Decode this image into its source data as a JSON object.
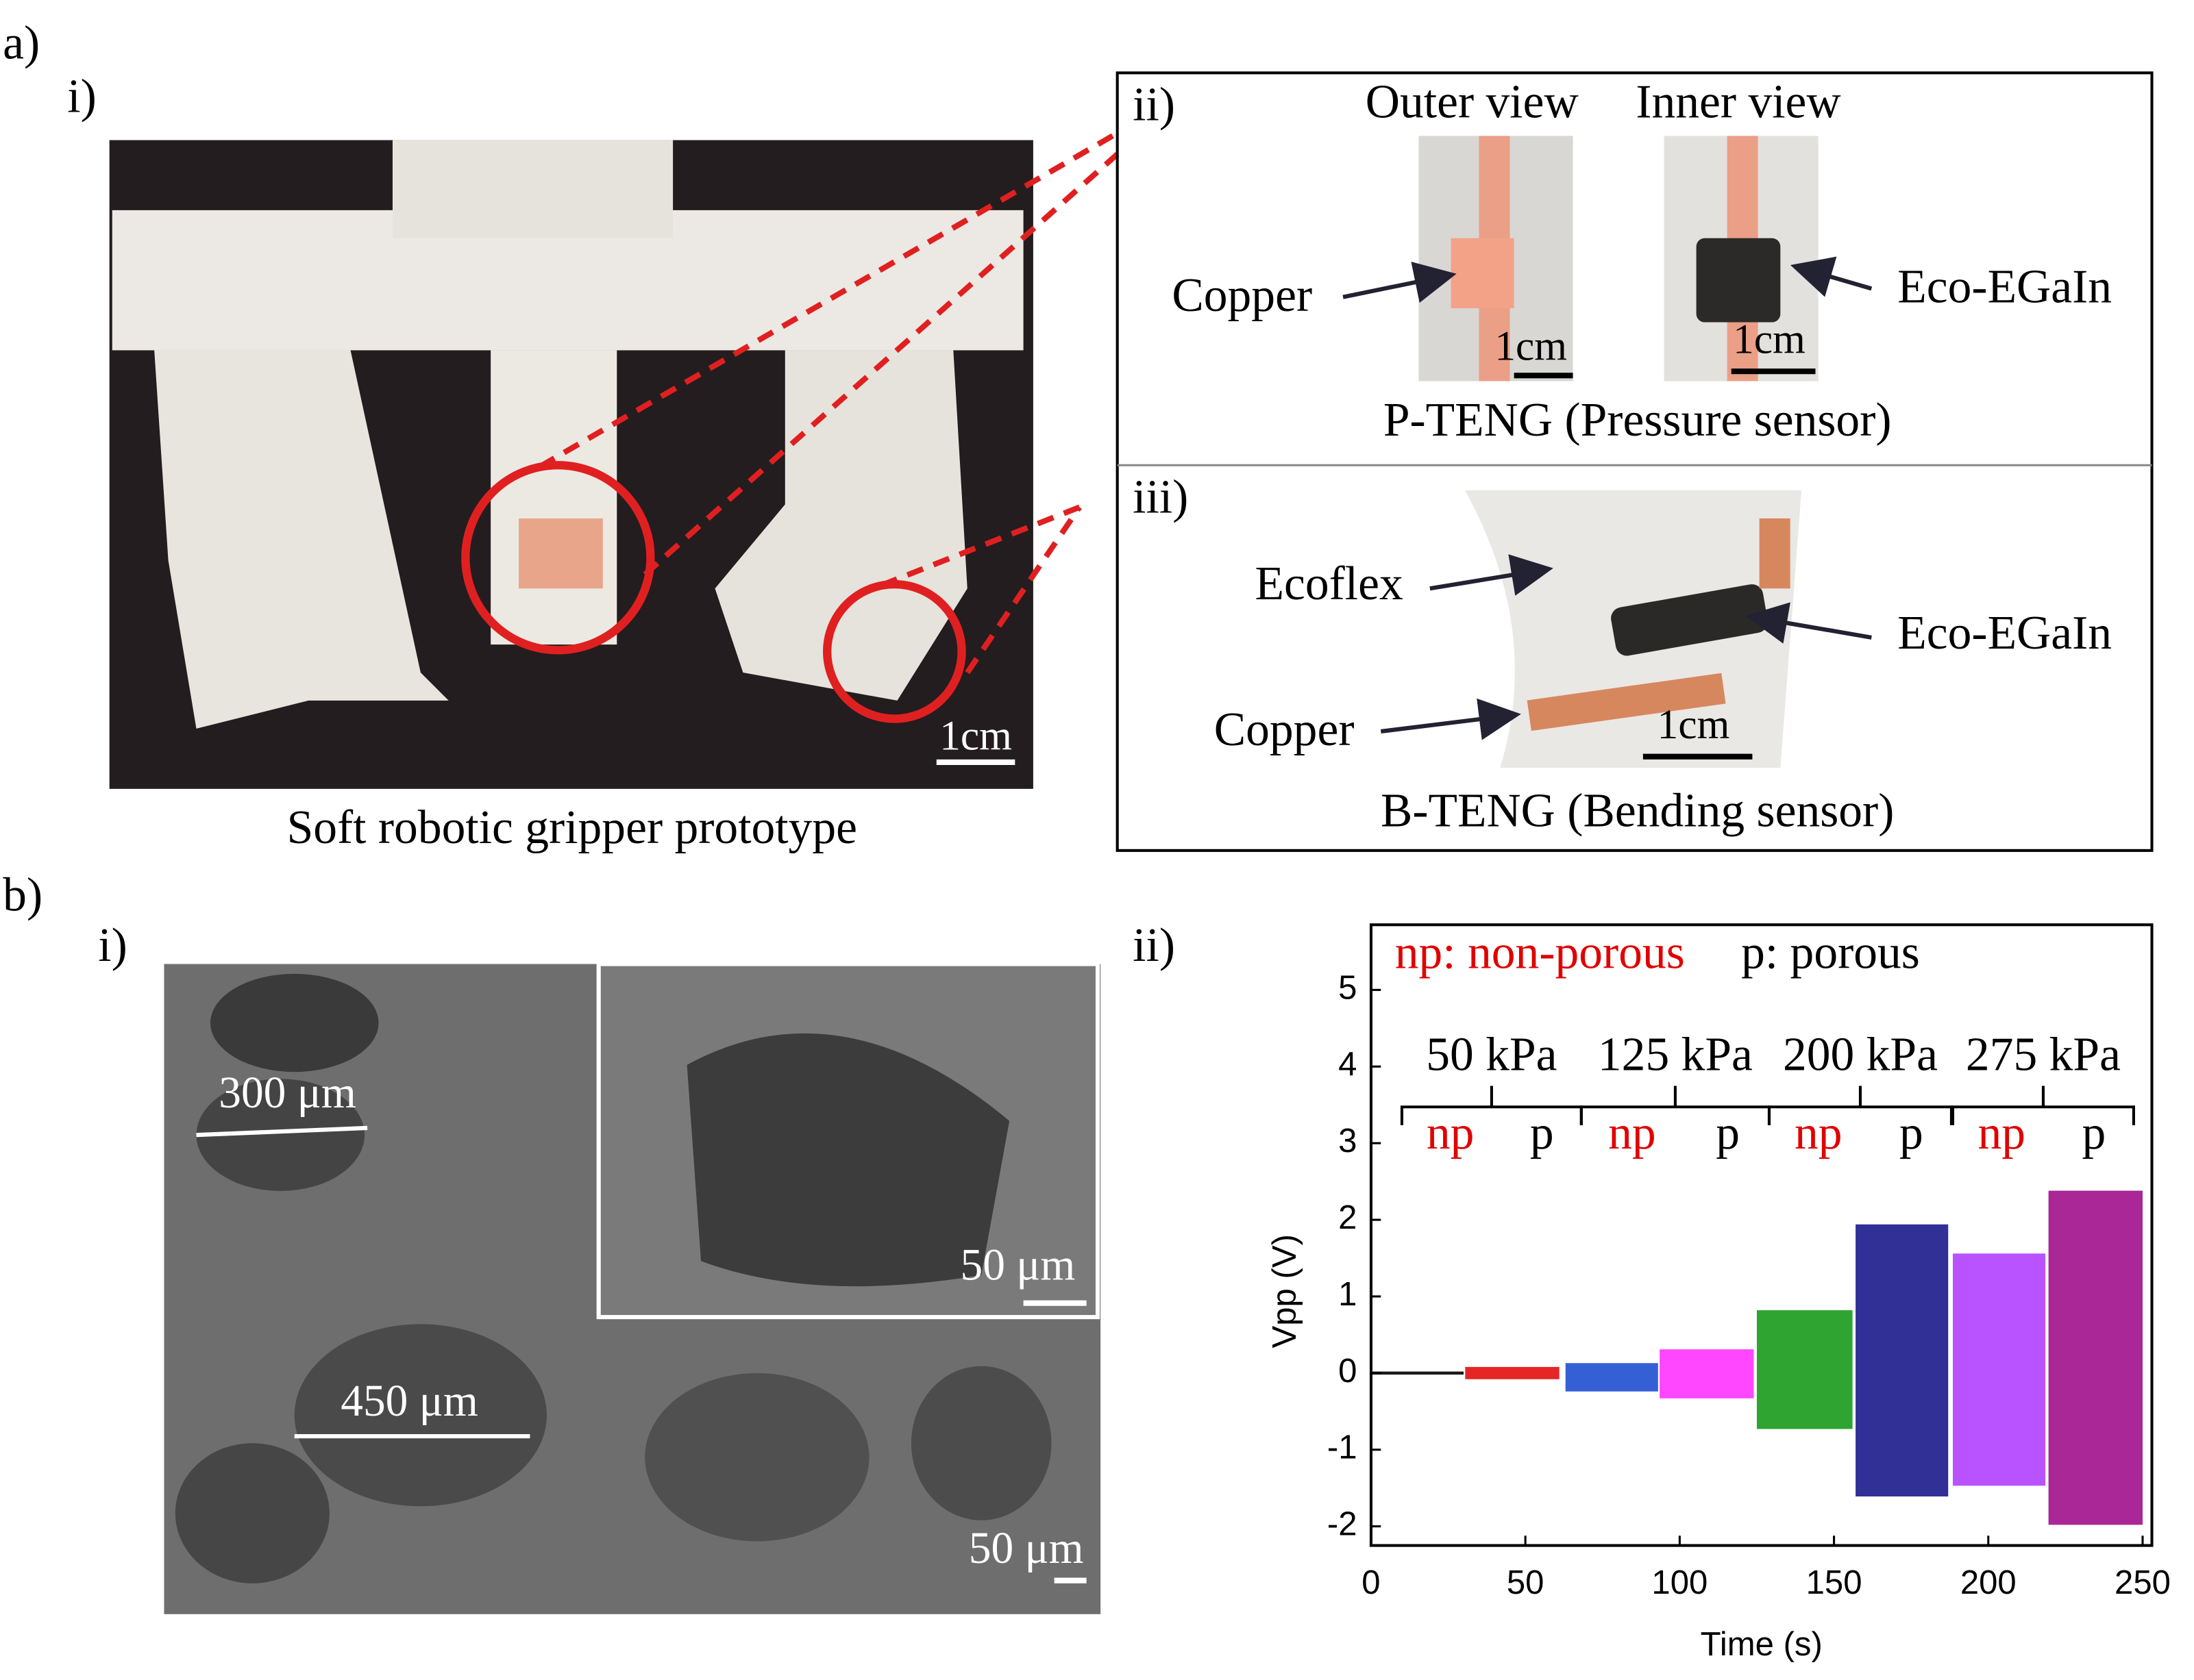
{
  "panel_a": {
    "label": "a)",
    "i": {
      "label": "i)",
      "caption": "Soft robotic gripper prototype",
      "scale_bar": "1cm"
    },
    "ii": {
      "label": "ii)",
      "outer_view": "Outer view",
      "inner_view": "Inner view",
      "copper": "Copper",
      "eco_egain": "Eco-EGaIn",
      "scale_bar_outer": "1cm",
      "scale_bar_inner": "1cm",
      "caption": "P-TENG (Pressure sensor)"
    },
    "iii": {
      "label": "iii)",
      "ecoflex": "Ecoflex",
      "eco_egain": "Eco-EGaIn",
      "copper": "Copper",
      "scale_bar": "1cm",
      "caption": "B-TENG (Bending sensor)"
    }
  },
  "panel_b": {
    "label": "b)",
    "i": {
      "label": "i)",
      "pore_small": "300 μm",
      "pore_large": "450 μm",
      "scale_bar_inset": "50 μm",
      "scale_bar": "50 μm"
    },
    "ii": {
      "label": "ii)"
    }
  },
  "chart_data": {
    "type": "band",
    "xlabel": "Time (s)",
    "ylabel": "Vpp (V)",
    "xlim": [
      0,
      253
    ],
    "ylim": [
      -2.25,
      5.85
    ],
    "xticks": [
      0,
      50,
      100,
      150,
      200,
      250
    ],
    "yticks": [
      -2,
      -1,
      0,
      1,
      2,
      3,
      4,
      5
    ],
    "legend": [
      {
        "text": "np: non-porous",
        "color": "#e00000"
      },
      {
        "text": "p: porous",
        "color": "#000000"
      }
    ],
    "groups": [
      {
        "label": "50 kPa",
        "segments": [
          {
            "label": "np",
            "color": "#000000",
            "x": [
              0,
              30
            ],
            "values": [
              -0.02,
              0.02
            ]
          },
          {
            "label": "p",
            "color": "#e01010",
            "x": [
              30.5,
              61
            ],
            "values": [
              -0.08,
              0.08
            ]
          }
        ]
      },
      {
        "label": "125 kPa",
        "segments": [
          {
            "label": "np",
            "color": "#1f4fd0",
            "x": [
              63,
              93
            ],
            "values": [
              -0.24,
              0.13
            ]
          },
          {
            "label": "p",
            "color": "#ff33ff",
            "x": [
              93.5,
              124
            ],
            "values": [
              -0.33,
              0.31
            ]
          }
        ]
      },
      {
        "label": "200 kPa",
        "segments": [
          {
            "label": "np",
            "color": "#1a9a1a",
            "x": [
              125,
              156
            ],
            "values": [
              -0.73,
              0.82
            ]
          },
          {
            "label": "p",
            "color": "#1a1a8c",
            "x": [
              157,
              187
            ],
            "values": [
              -1.61,
              1.94
            ]
          }
        ]
      },
      {
        "label": "275 kPa",
        "segments": [
          {
            "label": "np",
            "color": "#b040ff",
            "x": [
              188.5,
              218.5
            ],
            "values": [
              -1.47,
              1.56
            ]
          },
          {
            "label": "p",
            "color": "#a0108c",
            "x": [
              219.5,
              250
            ],
            "values": [
              -1.98,
              2.38
            ]
          }
        ]
      }
    ]
  }
}
